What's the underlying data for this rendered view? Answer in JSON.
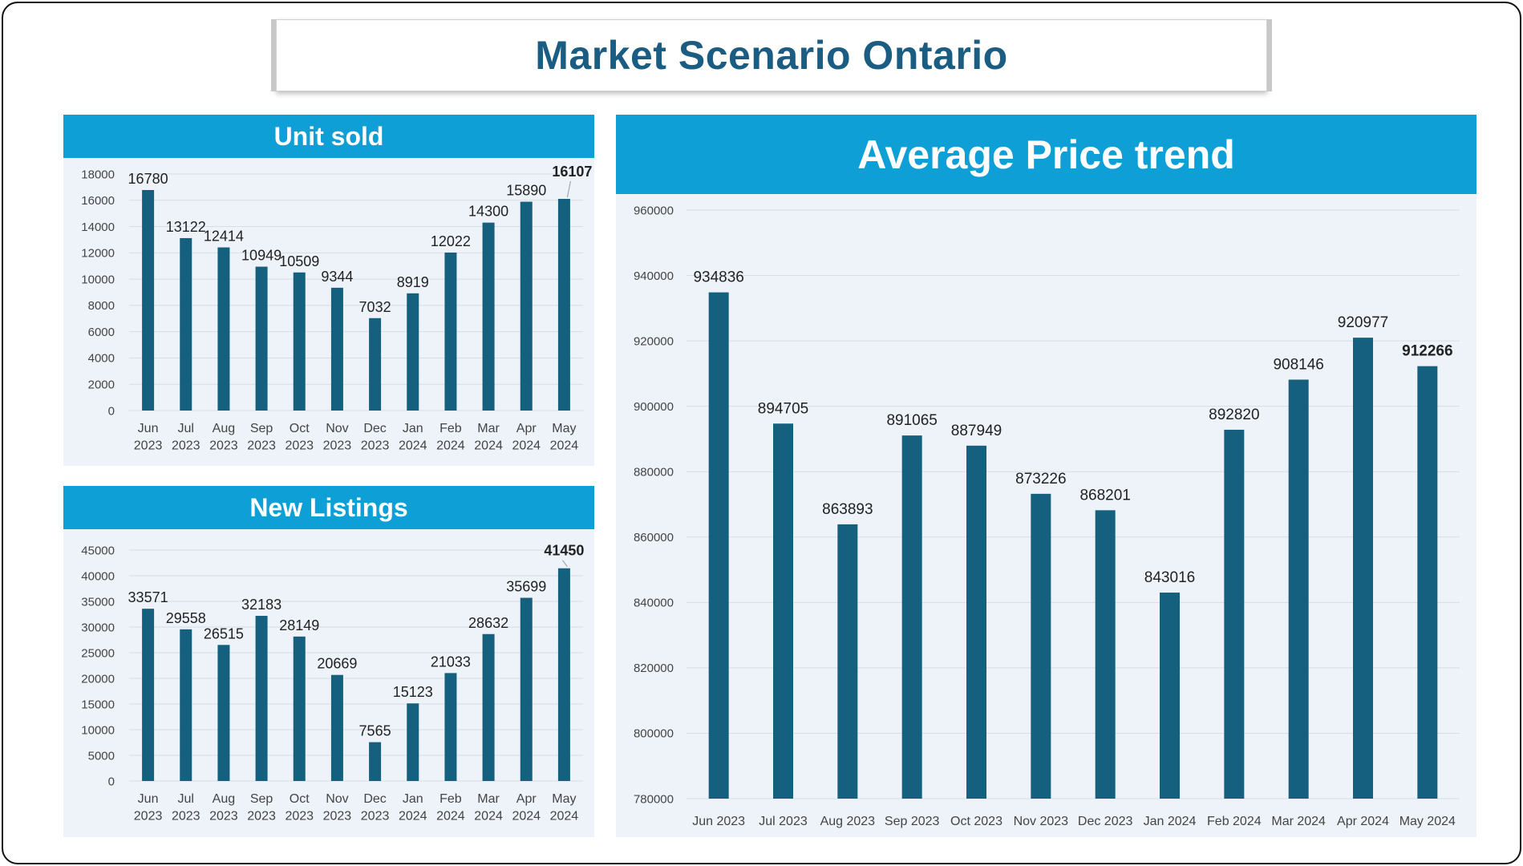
{
  "page": {
    "title": "Market Scenario Ontario",
    "colors": {
      "header": "#0e9fd6",
      "bar": "#16607f",
      "panel_bg": "#edf3f9",
      "title_text": "#1b5d82"
    }
  },
  "chart_data": [
    {
      "id": "units",
      "type": "bar",
      "title": "Unit sold",
      "categories": [
        "Jun 2023",
        "Jul 2023",
        "Aug 2023",
        "Sep 2023",
        "Oct 2023",
        "Nov 2023",
        "Dec 2023",
        "Jan 2024",
        "Feb 2024",
        "Mar 2024",
        "Apr 2024",
        "May 2024"
      ],
      "values": [
        16780,
        13122,
        12414,
        10949,
        10509,
        9344,
        7032,
        8919,
        12022,
        14300,
        15890,
        16107
      ],
      "highlight_last": true,
      "ylim": [
        0,
        18000
      ],
      "yticks": [
        0,
        2000,
        4000,
        6000,
        8000,
        10000,
        12000,
        14000,
        16000,
        18000
      ],
      "grid": true
    },
    {
      "id": "listings",
      "type": "bar",
      "title": "New Listings",
      "categories": [
        "Jun 2023",
        "Jul 2023",
        "Aug 2023",
        "Sep 2023",
        "Oct 2023",
        "Nov 2023",
        "Dec 2023",
        "Jan 2024",
        "Feb 2024",
        "Mar 2024",
        "Apr 2024",
        "May 2024"
      ],
      "values": [
        33571,
        29558,
        26515,
        32183,
        28149,
        20669,
        7565,
        15123,
        21033,
        28632,
        35699,
        41450
      ],
      "highlight_last": true,
      "ylim": [
        0,
        45000
      ],
      "yticks": [
        0,
        5000,
        10000,
        15000,
        20000,
        25000,
        30000,
        35000,
        40000,
        45000
      ],
      "grid": true
    },
    {
      "id": "price",
      "type": "bar",
      "title": "Average Price trend",
      "categories": [
        "Jun 2023",
        "Jul 2023",
        "Aug 2023",
        "Sep 2023",
        "Oct 2023",
        "Nov 2023",
        "Dec 2023",
        "Jan 2024",
        "Feb 2024",
        "Mar 2024",
        "Apr 2024",
        "May 2024"
      ],
      "values": [
        934836,
        894705,
        863893,
        891065,
        887949,
        873226,
        868201,
        843016,
        892820,
        908146,
        920977,
        912266
      ],
      "highlight_last": true,
      "ylim": [
        780000,
        960000
      ],
      "yticks": [
        780000,
        800000,
        820000,
        840000,
        860000,
        880000,
        900000,
        920000,
        940000,
        960000
      ],
      "grid": true
    }
  ]
}
